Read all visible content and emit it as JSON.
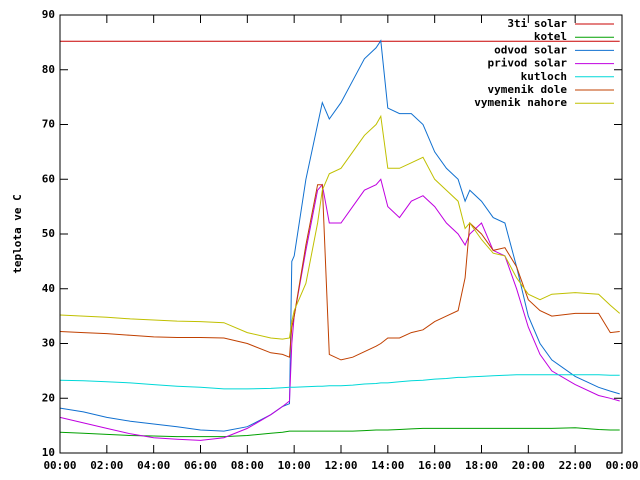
{
  "chart_data": {
    "type": "line",
    "ylabel": "teplota ve C",
    "x": [
      0,
      1,
      2,
      3,
      4,
      5,
      6,
      7,
      8,
      9,
      9.5,
      9.8,
      9.9,
      10,
      10.5,
      11,
      11.2,
      11.5,
      12,
      12.5,
      13,
      13.5,
      13.7,
      14,
      14.5,
      15,
      15.5,
      16,
      16.5,
      17,
      17.3,
      17.5,
      18,
      18.5,
      19,
      19.5,
      20,
      20.5,
      21,
      22,
      23,
      23.5,
      23.9
    ],
    "xlim": [
      0,
      24
    ],
    "xticks": [
      {
        "value": 0,
        "label": "00:00"
      },
      {
        "value": 2,
        "label": "02:00"
      },
      {
        "value": 4,
        "label": "04:00"
      },
      {
        "value": 6,
        "label": "06:00"
      },
      {
        "value": 8,
        "label": "08:00"
      },
      {
        "value": 10,
        "label": "10:00"
      },
      {
        "value": 12,
        "label": "12:00"
      },
      {
        "value": 14,
        "label": "14:00"
      },
      {
        "value": 16,
        "label": "16:00"
      },
      {
        "value": 18,
        "label": "18:00"
      },
      {
        "value": 20,
        "label": "20:00"
      },
      {
        "value": 22,
        "label": "22:00"
      },
      {
        "value": 24,
        "label": "00:00"
      }
    ],
    "ylim": [
      10,
      90
    ],
    "yticks": [
      10,
      20,
      30,
      40,
      50,
      60,
      70,
      80,
      90
    ],
    "grid": false,
    "legend": "top-right",
    "series": [
      {
        "name": "3ti solar",
        "color": "#c80000",
        "values": [
          85.2,
          85.2,
          85.2,
          85.2,
          85.2,
          85.2,
          85.2,
          85.2,
          85.2,
          85.2,
          85.2,
          85.2,
          85.2,
          85.2,
          85.2,
          85.2,
          85.2,
          85.2,
          85.2,
          85.2,
          85.2,
          85.2,
          85.2,
          85.2,
          85.2,
          85.2,
          85.2,
          85.2,
          85.2,
          85.2,
          85.2,
          85.2,
          85.2,
          85.2,
          85.2,
          85.2,
          85.2,
          85.2,
          85.2,
          85.2,
          85.2,
          85.2,
          85.2
        ]
      },
      {
        "name": "kotel",
        "color": "#00a000",
        "values": [
          13.8,
          13.6,
          13.4,
          13.2,
          13.1,
          13,
          13,
          13,
          13.2,
          13.6,
          13.8,
          14,
          14,
          14,
          14,
          14,
          14,
          14,
          14,
          14,
          14.1,
          14.2,
          14.2,
          14.2,
          14.3,
          14.4,
          14.5,
          14.5,
          14.5,
          14.5,
          14.5,
          14.5,
          14.5,
          14.5,
          14.5,
          14.5,
          14.5,
          14.5,
          14.5,
          14.6,
          14.3,
          14.2,
          14.2
        ]
      },
      {
        "name": "odvod solar",
        "color": "#1070d0",
        "values": [
          18.2,
          17.5,
          16.5,
          15.8,
          15.3,
          14.8,
          14.2,
          14,
          14.8,
          17,
          18.5,
          19,
          45,
          46,
          60,
          70,
          74,
          71,
          74,
          78,
          82,
          84,
          85.3,
          73,
          72,
          72,
          70,
          65,
          62,
          60,
          56,
          58,
          56,
          53,
          52,
          44,
          35,
          30,
          27,
          24,
          22,
          21.3,
          20.8
        ]
      },
      {
        "name": "privod solar",
        "color": "#c000e0",
        "values": [
          16.5,
          15.5,
          14.5,
          13.5,
          12.8,
          12.5,
          12.3,
          12.8,
          14.5,
          17,
          18.5,
          19.5,
          30,
          35,
          47,
          58,
          59,
          52,
          52,
          55,
          58,
          59,
          60,
          55,
          53,
          56,
          57,
          55,
          52,
          50,
          48,
          50,
          52,
          47,
          46,
          40,
          33,
          28,
          25,
          22.5,
          20.5,
          20,
          19.5
        ]
      },
      {
        "name": "kutloch",
        "color": "#00d8d8",
        "values": [
          23.3,
          23.2,
          23,
          22.8,
          22.5,
          22.2,
          22,
          21.7,
          21.7,
          21.8,
          21.9,
          22,
          22,
          22,
          22.1,
          22.2,
          22.2,
          22.3,
          22.3,
          22.4,
          22.6,
          22.7,
          22.8,
          22.8,
          23,
          23.2,
          23.3,
          23.5,
          23.6,
          23.8,
          23.8,
          23.9,
          24,
          24.1,
          24.2,
          24.3,
          24.3,
          24.3,
          24.3,
          24.3,
          24.3,
          24.2,
          24.2
        ]
      },
      {
        "name": "vymenik dole",
        "color": "#c04000",
        "values": [
          32.2,
          32,
          31.8,
          31.5,
          31.2,
          31.1,
          31.1,
          31,
          30,
          28.3,
          28,
          27.5,
          33,
          35,
          48,
          59,
          59,
          28,
          27,
          27.5,
          28.5,
          29.5,
          30,
          31,
          31,
          32,
          32.5,
          34,
          35,
          36,
          42,
          52,
          50,
          47,
          47.5,
          44,
          38,
          36,
          35,
          35.5,
          35.5,
          32,
          32.2
        ]
      },
      {
        "name": "vymenik nahore",
        "color": "#c0c000",
        "values": [
          35.2,
          35,
          34.8,
          34.5,
          34.3,
          34.1,
          34,
          33.8,
          32,
          31,
          30.8,
          31,
          34,
          36,
          41,
          52,
          58,
          61,
          62,
          65,
          68,
          70,
          71.5,
          62,
          62,
          63,
          64,
          60,
          58,
          56,
          51,
          52,
          49,
          46.5,
          46,
          42,
          39,
          38,
          39,
          39.3,
          39,
          37,
          35.5
        ]
      }
    ]
  }
}
